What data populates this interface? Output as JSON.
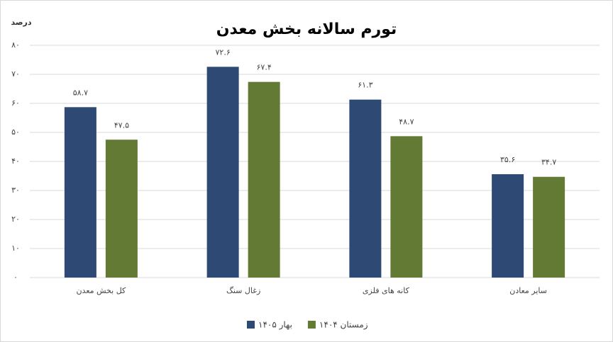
{
  "chart_data": {
    "type": "bar",
    "title": "تورم سالانه بخش معدن",
    "y_label": "درصد",
    "categories": [
      "کل بخش معدن",
      "زغال سنگ",
      "کانه های فلزی",
      "سایر معادن"
    ],
    "series": [
      {
        "name": "بهار ۱۴۰۵",
        "color": "#2e4a74",
        "values": [
          58.7,
          72.6,
          61.3,
          35.6
        ],
        "value_labels": [
          "۵۸.۷",
          "۷۲.۶",
          "۶۱.۳",
          "۳۵.۶"
        ]
      },
      {
        "name": "زمستان ۱۴۰۴",
        "color": "#637a34",
        "values": [
          47.5,
          67.4,
          48.7,
          34.7
        ],
        "value_labels": [
          "۴۷.۵",
          "۶۷.۴",
          "۴۸.۷",
          "۳۴.۷"
        ]
      }
    ],
    "ylim": [
      0,
      80
    ],
    "yticks": [
      {
        "value": 0,
        "label": "۰"
      },
      {
        "value": 10,
        "label": "۱۰"
      },
      {
        "value": 20,
        "label": "۲۰"
      },
      {
        "value": 30,
        "label": "۳۰"
      },
      {
        "value": 40,
        "label": "۴۰"
      },
      {
        "value": 50,
        "label": "۵۰"
      },
      {
        "value": 60,
        "label": "۶۰"
      },
      {
        "value": 70,
        "label": "۷۰"
      },
      {
        "value": 80,
        "label": "۸۰"
      }
    ],
    "grid": true,
    "legend": "bottom"
  }
}
